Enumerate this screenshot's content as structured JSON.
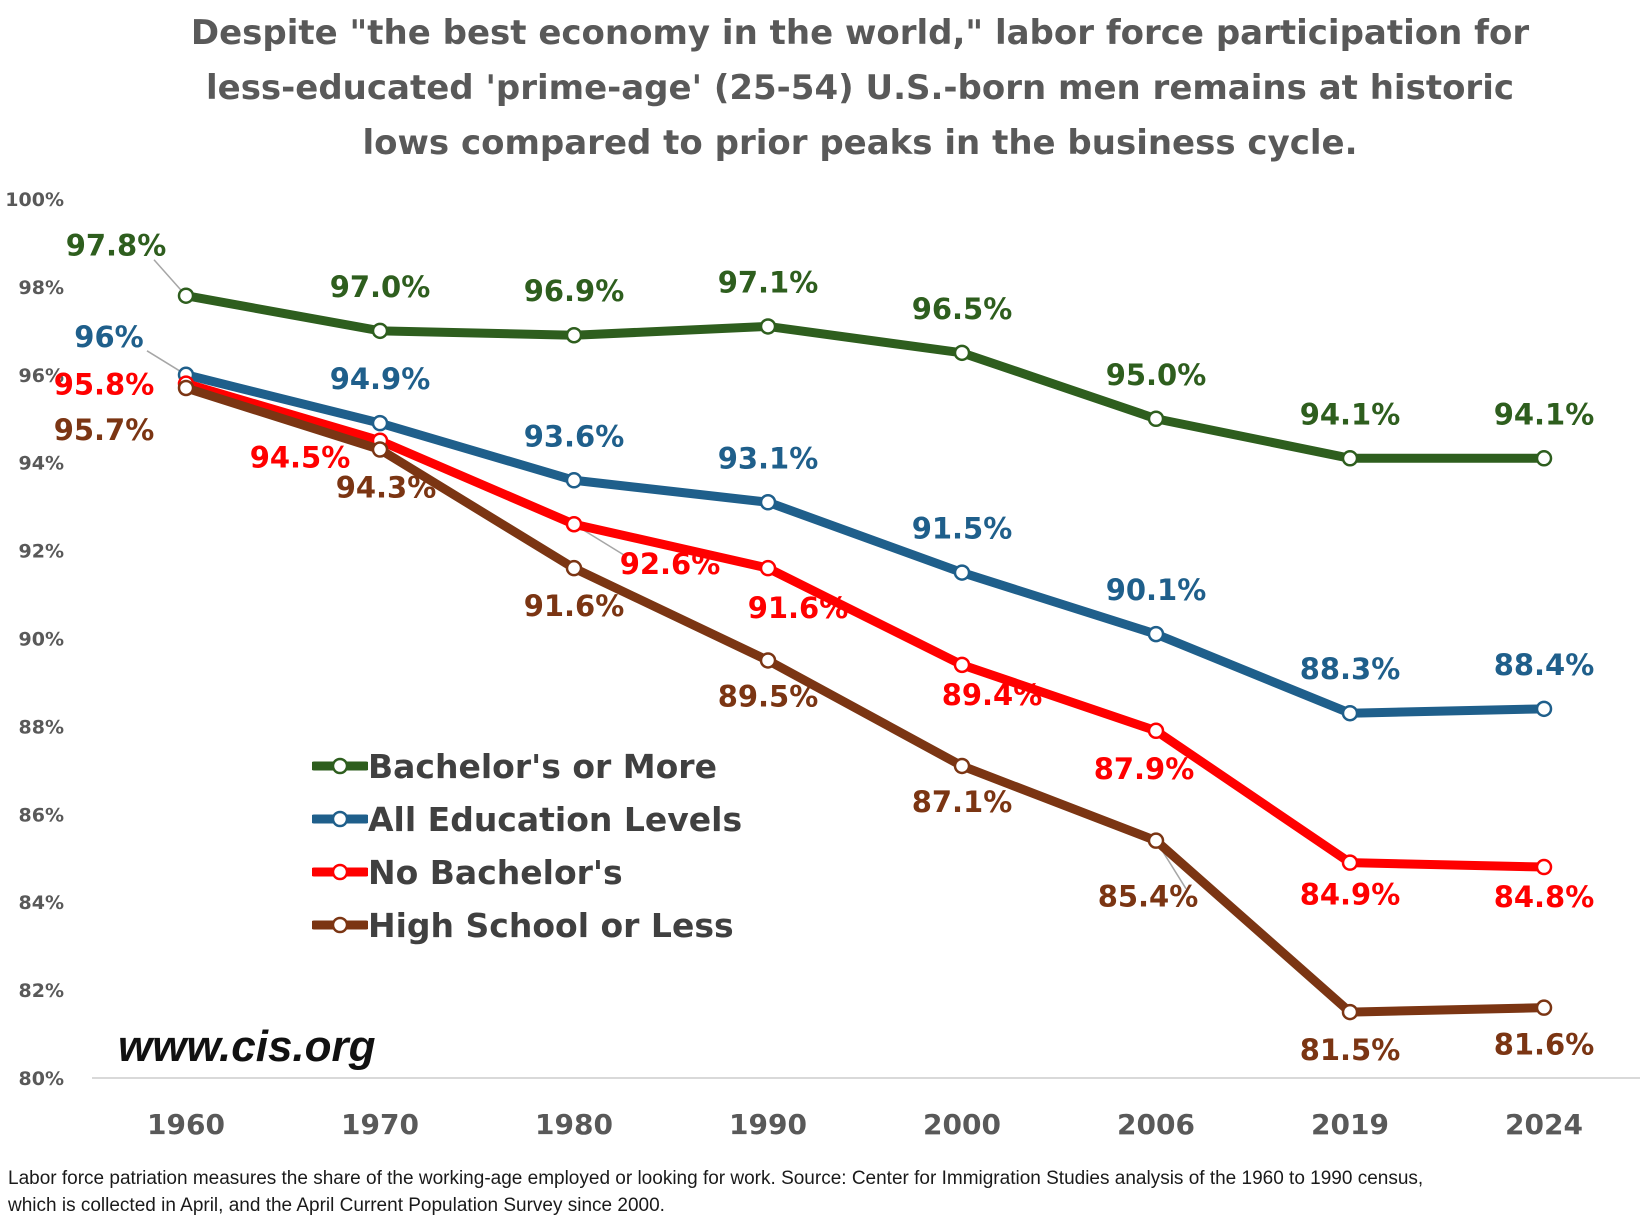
{
  "title_lines": [
    "Despite \"the best economy in the world,\" labor force participation for",
    "less-educated 'prime-age' (25-54) U.S.-born men remains at historic",
    "lows compared to prior peaks in the business cycle."
  ],
  "watermark": "www.cis.org",
  "footnote_lines": [
    "Labor force patriation measures the share of the working-age employed or looking for work. Source: Center for Immigration Studies analysis of the 1960 to 1990 census,",
    "which is collected in April, and the April Current Population Survey since 2000."
  ],
  "chart_data": {
    "type": "line",
    "title": "Despite \"the best economy in the world,\" labor force participation for less-educated 'prime-age' (25-54) U.S.-born men remains at historic lows compared to prior peaks in the business cycle.",
    "categories": [
      "1960",
      "1970",
      "1980",
      "1990",
      "2000",
      "2006",
      "2019",
      "2024"
    ],
    "ylim": [
      80,
      100
    ],
    "yticks": [
      80,
      82,
      84,
      86,
      88,
      90,
      92,
      94,
      96,
      98,
      100
    ],
    "ytick_labels": [
      "80%",
      "82%",
      "84%",
      "86%",
      "88%",
      "90%",
      "92%",
      "94%",
      "96%",
      "98%",
      "100%"
    ],
    "grid": false,
    "legend_position": "center-left",
    "series": [
      {
        "name": "Bachelor's or More",
        "color": "#2e5e1e",
        "values": [
          97.8,
          97.0,
          96.9,
          97.1,
          96.5,
          95.0,
          94.1,
          94.1
        ],
        "labels": [
          "97.8%",
          "97.0%",
          "96.9%",
          "97.1%",
          "96.5%",
          "95.0%",
          "94.1%",
          "94.1%"
        ]
      },
      {
        "name": "All Education Levels",
        "color": "#1f5f8b",
        "values": [
          96.0,
          94.9,
          93.6,
          93.1,
          91.5,
          90.1,
          88.3,
          88.4
        ],
        "labels": [
          "96%",
          "94.9%",
          "93.6%",
          "93.1%",
          "91.5%",
          "90.1%",
          "88.3%",
          "88.4%"
        ]
      },
      {
        "name": "No Bachelor's",
        "color": "#ff0000",
        "values": [
          95.8,
          94.5,
          92.6,
          91.6,
          89.4,
          87.9,
          84.9,
          84.8
        ],
        "labels": [
          "95.8%",
          "94.5%",
          "92.6%",
          "91.6%",
          "89.4%",
          "87.9%",
          "84.9%",
          "84.8%"
        ]
      },
      {
        "name": "High School or Less",
        "color": "#7b3513",
        "values": [
          95.7,
          94.3,
          91.6,
          89.5,
          87.1,
          85.4,
          81.5,
          81.6
        ],
        "labels": [
          "95.7%",
          "94.3%",
          "91.6%",
          "89.5%",
          "87.1%",
          "85.4%",
          "81.5%",
          "81.6%"
        ]
      }
    ]
  }
}
